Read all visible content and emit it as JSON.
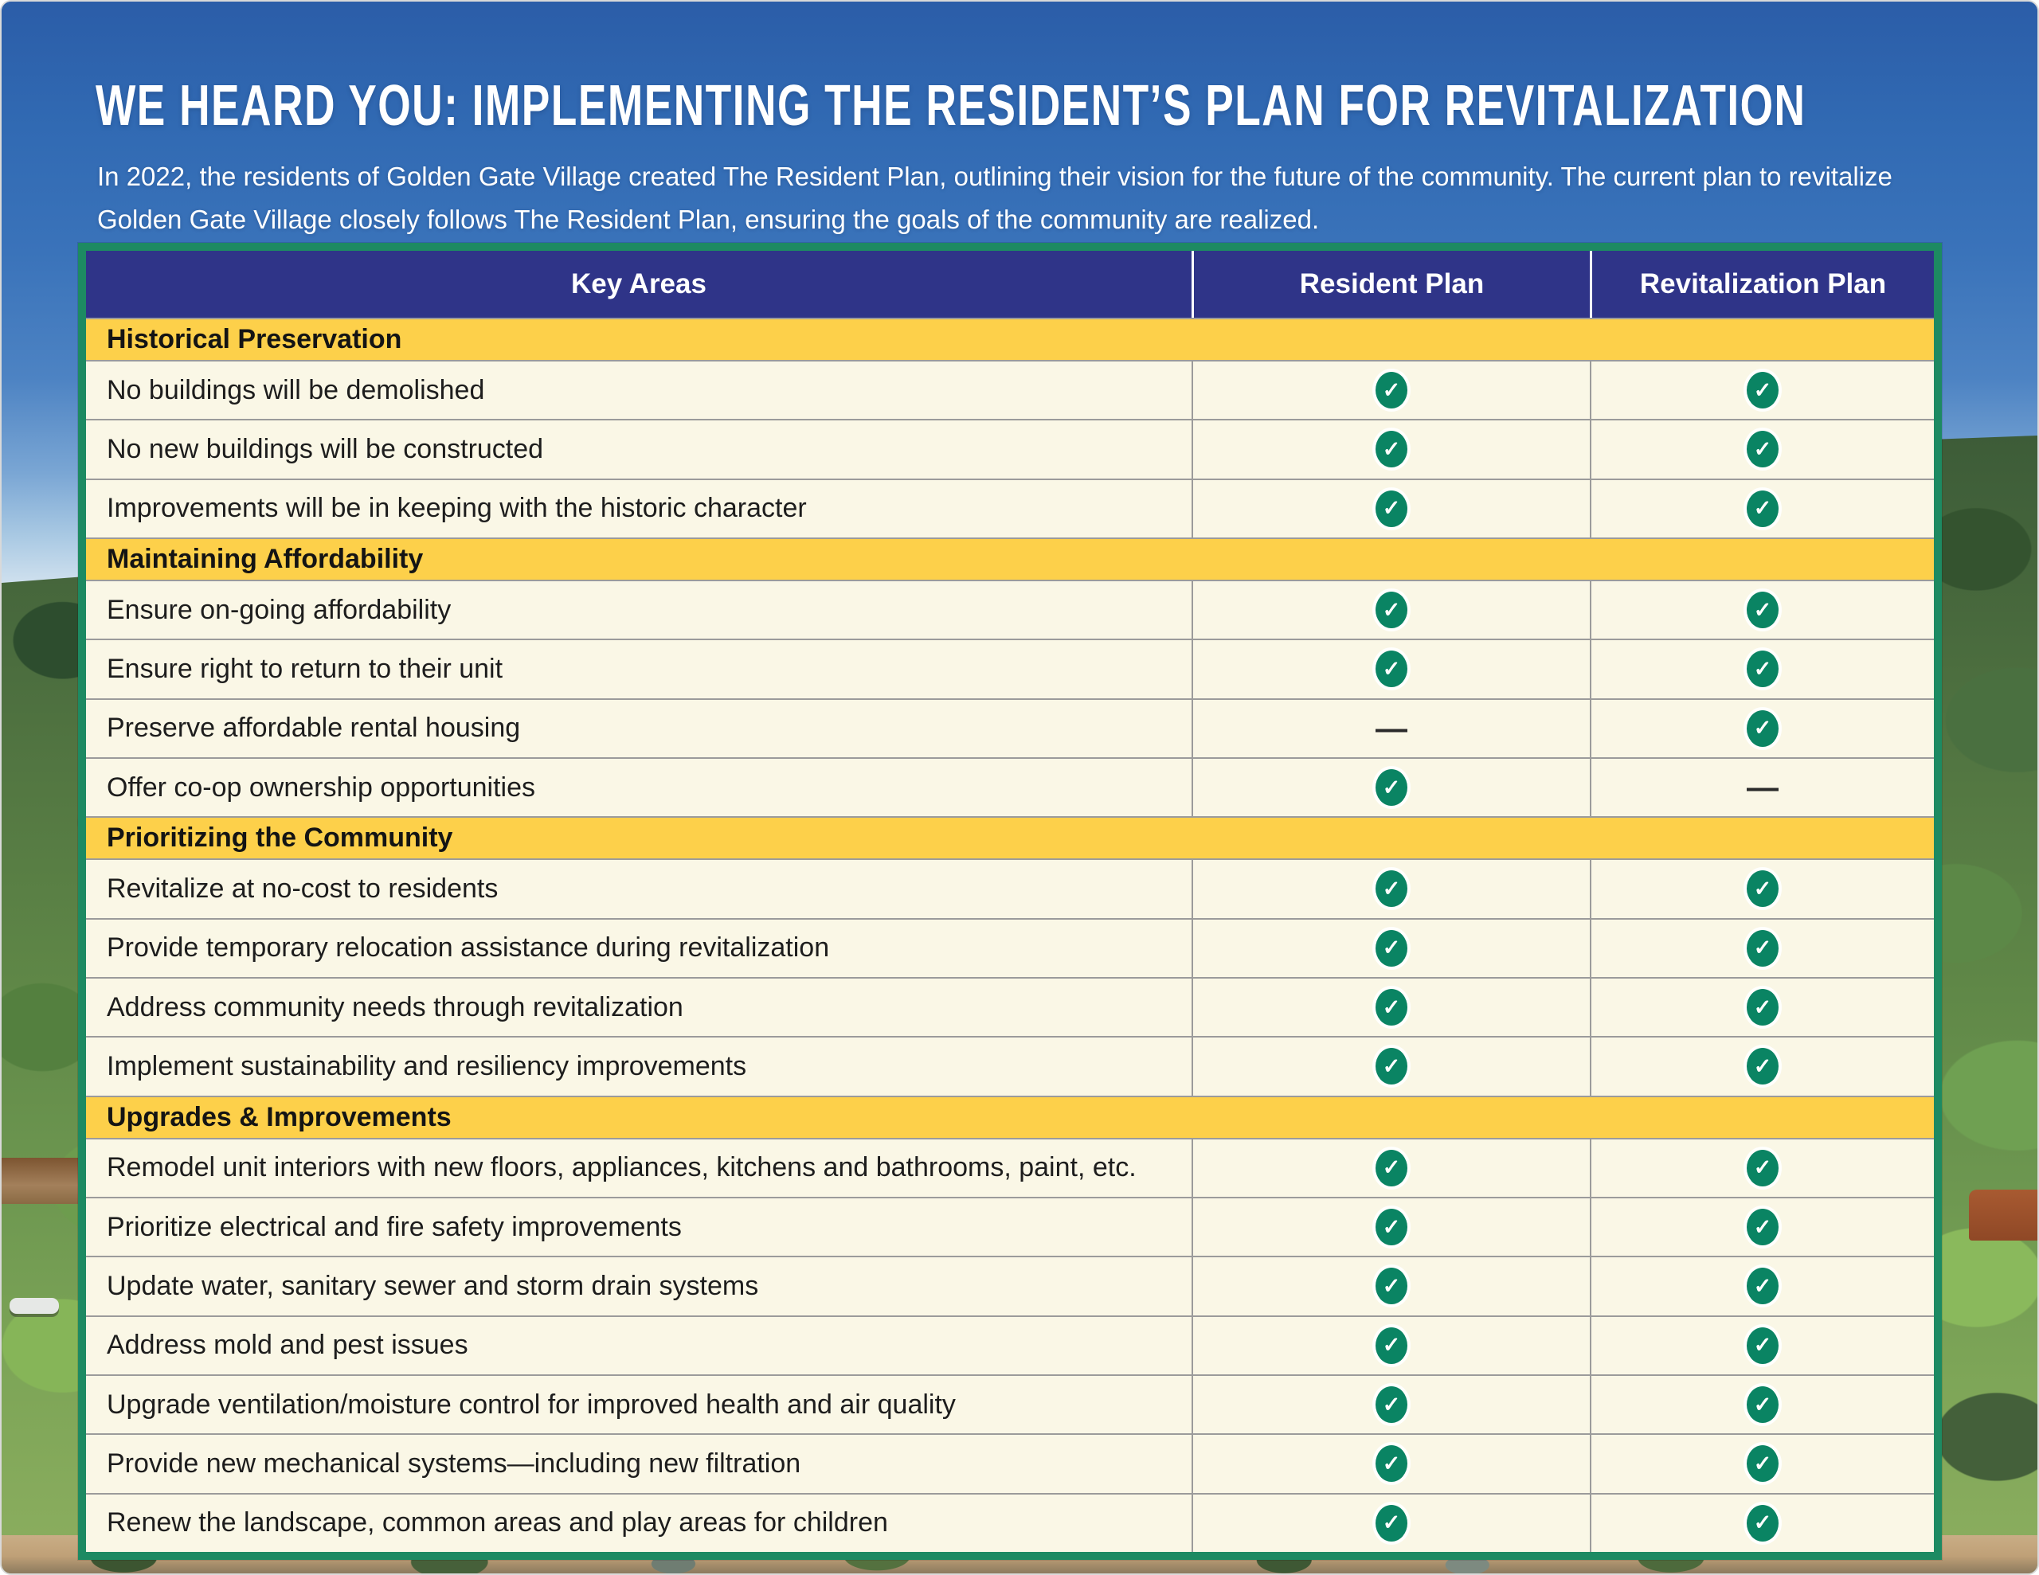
{
  "page": {
    "title": "WE HEARD YOU: IMPLEMENTING THE RESIDENT’S PLAN FOR REVITALIZATION",
    "intro": "In 2022, the residents of Golden Gate Village created The Resident Plan, outlining their vision for the future of the community. The current plan to revitalize Golden Gate Village closely follows The Resident Plan, ensuring the goals of the community are realized."
  },
  "table": {
    "columns": [
      {
        "label": "Key Areas"
      },
      {
        "label": "Resident Plan"
      },
      {
        "label": "Revitalization Plan"
      }
    ],
    "sections": [
      {
        "title": "Historical Preservation",
        "rows": [
          {
            "label": "No buildings will be demolished",
            "resident": "check",
            "revitalization": "check"
          },
          {
            "label": "No new buildings will be constructed",
            "resident": "check",
            "revitalization": "check"
          },
          {
            "label": "Improvements will be in keeping with the historic character",
            "resident": "check",
            "revitalization": "check"
          }
        ]
      },
      {
        "title": "Maintaining Affordability",
        "rows": [
          {
            "label": "Ensure on-going affordability",
            "resident": "check",
            "revitalization": "check"
          },
          {
            "label": "Ensure right to return to their unit",
            "resident": "check",
            "revitalization": "check"
          },
          {
            "label": "Preserve affordable rental housing",
            "resident": "dash",
            "revitalization": "check"
          },
          {
            "label": "Offer co-op ownership opportunities",
            "resident": "check",
            "revitalization": "dash"
          }
        ]
      },
      {
        "title": "Prioritizing the Community",
        "rows": [
          {
            "label": "Revitalize at no-cost to residents",
            "resident": "check",
            "revitalization": "check"
          },
          {
            "label": "Provide temporary relocation assistance during revitalization",
            "resident": "check",
            "revitalization": "check"
          },
          {
            "label": "Address community needs through revitalization",
            "resident": "check",
            "revitalization": "check"
          },
          {
            "label": "Implement sustainability and resiliency improvements",
            "resident": "check",
            "revitalization": "check"
          }
        ]
      },
      {
        "title": "Upgrades & Improvements",
        "rows": [
          {
            "label": "Remodel unit interiors with new floors, appliances, kitchens and bathrooms, paint, etc.",
            "resident": "check",
            "revitalization": "check"
          },
          {
            "label": "Prioritize electrical and fire safety improvements",
            "resident": "check",
            "revitalization": "check"
          },
          {
            "label": "Update water, sanitary sewer and storm drain systems",
            "resident": "check",
            "revitalization": "check"
          },
          {
            "label": "Address mold and pest issues",
            "resident": "check",
            "revitalization": "check"
          },
          {
            "label": "Upgrade ventilation/moisture control for improved health and air quality",
            "resident": "check",
            "revitalization": "check"
          },
          {
            "label": "Provide new mechanical systems—including new filtration",
            "resident": "check",
            "revitalization": "check"
          },
          {
            "label": "Renew the landscape, common areas and play areas for children",
            "resident": "check",
            "revitalization": "check"
          }
        ]
      }
    ]
  },
  "icons": {
    "check": "✓",
    "dash": "—"
  },
  "colors": {
    "header_bg": "#2f3488",
    "section_bg": "#fdd04a",
    "row_bg": "#faf7e6",
    "table_border_green": "#1d8a62",
    "check_green": "#0a8463",
    "row_divider": "#9b9b9b",
    "title_text": "#ffffff",
    "sky_blue": "#3a6db5"
  }
}
